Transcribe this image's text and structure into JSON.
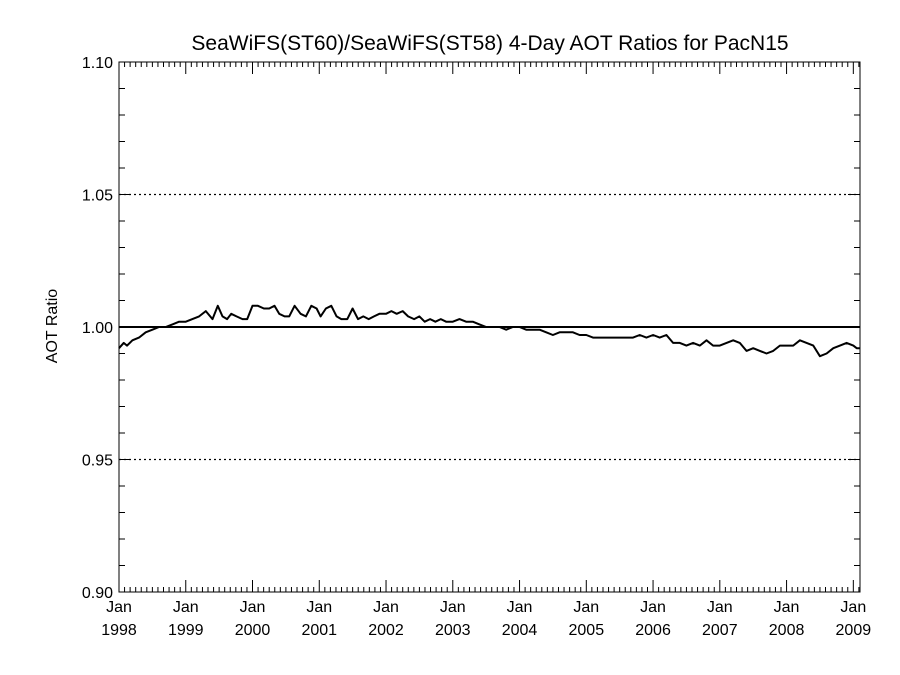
{
  "chart_data": {
    "type": "line",
    "title": "SeaWiFS(ST60)/SeaWiFS(ST58) 4-Day AOT Ratios for PacN15",
    "xlabel": "",
    "ylabel": "AOT Ratio",
    "xlim": [
      1998.0,
      2009.1
    ],
    "ylim": [
      0.9,
      1.1
    ],
    "yticks": [
      "0.90",
      "0.95",
      "1.00",
      "1.05",
      "1.10"
    ],
    "xticks": [
      {
        "x": 1998,
        "month": "Jan",
        "year": "1998"
      },
      {
        "x": 1999,
        "month": "Jan",
        "year": "1999"
      },
      {
        "x": 2000,
        "month": "Jan",
        "year": "2000"
      },
      {
        "x": 2001,
        "month": "Jan",
        "year": "2001"
      },
      {
        "x": 2002,
        "month": "Jan",
        "year": "2002"
      },
      {
        "x": 2003,
        "month": "Jan",
        "year": "2003"
      },
      {
        "x": 2004,
        "month": "Jan",
        "year": "2004"
      },
      {
        "x": 2005,
        "month": "Jan",
        "year": "2005"
      },
      {
        "x": 2006,
        "month": "Jan",
        "year": "2006"
      },
      {
        "x": 2007,
        "month": "Jan",
        "year": "2007"
      },
      {
        "x": 2008,
        "month": "Jan",
        "year": "2008"
      },
      {
        "x": 2009,
        "month": "Jan",
        "year": "2009"
      }
    ],
    "dotted_gridlines_y": [
      0.95,
      1.05
    ],
    "reference_line_y": 1.0,
    "series": [
      {
        "color": "#000000",
        "x": [
          1998.0,
          1998.07,
          1998.12,
          1998.2,
          1998.3,
          1998.4,
          1998.5,
          1998.6,
          1998.7,
          1998.8,
          1998.9,
          1999.0,
          1999.1,
          1999.2,
          1999.3,
          1999.4,
          1999.48,
          1999.55,
          1999.62,
          1999.68,
          1999.76,
          1999.85,
          1999.92,
          2000.0,
          2000.08,
          2000.17,
          2000.25,
          2000.33,
          2000.4,
          2000.48,
          2000.55,
          2000.63,
          2000.72,
          2000.8,
          2000.88,
          2000.96,
          2001.02,
          2001.1,
          2001.18,
          2001.26,
          2001.33,
          2001.42,
          2001.5,
          2001.58,
          2001.66,
          2001.74,
          2001.82,
          2001.9,
          2002.0,
          2002.08,
          2002.16,
          2002.25,
          2002.33,
          2002.42,
          2002.5,
          2002.58,
          2002.66,
          2002.74,
          2002.82,
          2002.9,
          2003.0,
          2003.1,
          2003.2,
          2003.3,
          2003.4,
          2003.5,
          2003.6,
          2003.7,
          2003.8,
          2003.9,
          2004.0,
          2004.1,
          2004.2,
          2004.3,
          2004.4,
          2004.5,
          2004.6,
          2004.7,
          2004.8,
          2004.9,
          2005.0,
          2005.1,
          2005.2,
          2005.3,
          2005.4,
          2005.5,
          2005.6,
          2005.7,
          2005.8,
          2005.9,
          2006.0,
          2006.1,
          2006.2,
          2006.3,
          2006.4,
          2006.5,
          2006.6,
          2006.7,
          2006.8,
          2006.9,
          2007.0,
          2007.1,
          2007.2,
          2007.3,
          2007.4,
          2007.5,
          2007.6,
          2007.7,
          2007.8,
          2007.9,
          2008.0,
          2008.1,
          2008.2,
          2008.3,
          2008.4,
          2008.5,
          2008.6,
          2008.7,
          2008.8,
          2008.9,
          2009.0,
          2009.05,
          2009.1
        ],
        "y": [
          0.992,
          0.994,
          0.993,
          0.995,
          0.996,
          0.998,
          0.999,
          1.0,
          1.0,
          1.001,
          1.002,
          1.002,
          1.003,
          1.004,
          1.006,
          1.003,
          1.008,
          1.004,
          1.003,
          1.005,
          1.004,
          1.003,
          1.003,
          1.008,
          1.008,
          1.007,
          1.007,
          1.008,
          1.005,
          1.004,
          1.004,
          1.008,
          1.005,
          1.004,
          1.008,
          1.007,
          1.004,
          1.007,
          1.008,
          1.004,
          1.003,
          1.003,
          1.007,
          1.003,
          1.004,
          1.003,
          1.004,
          1.005,
          1.005,
          1.006,
          1.005,
          1.006,
          1.004,
          1.003,
          1.004,
          1.002,
          1.003,
          1.002,
          1.003,
          1.002,
          1.002,
          1.003,
          1.002,
          1.002,
          1.001,
          1.0,
          1.0,
          1.0,
          0.999,
          1.0,
          1.0,
          0.999,
          0.999,
          0.999,
          0.998,
          0.997,
          0.998,
          0.998,
          0.998,
          0.997,
          0.997,
          0.996,
          0.996,
          0.996,
          0.996,
          0.996,
          0.996,
          0.996,
          0.997,
          0.996,
          0.997,
          0.996,
          0.997,
          0.994,
          0.994,
          0.993,
          0.994,
          0.993,
          0.995,
          0.993,
          0.993,
          0.994,
          0.995,
          0.994,
          0.991,
          0.992,
          0.991,
          0.99,
          0.991,
          0.993,
          0.993,
          0.993,
          0.995,
          0.994,
          0.993,
          0.989,
          0.99,
          0.992,
          0.993,
          0.994,
          0.993,
          0.992,
          0.992
        ]
      }
    ]
  }
}
